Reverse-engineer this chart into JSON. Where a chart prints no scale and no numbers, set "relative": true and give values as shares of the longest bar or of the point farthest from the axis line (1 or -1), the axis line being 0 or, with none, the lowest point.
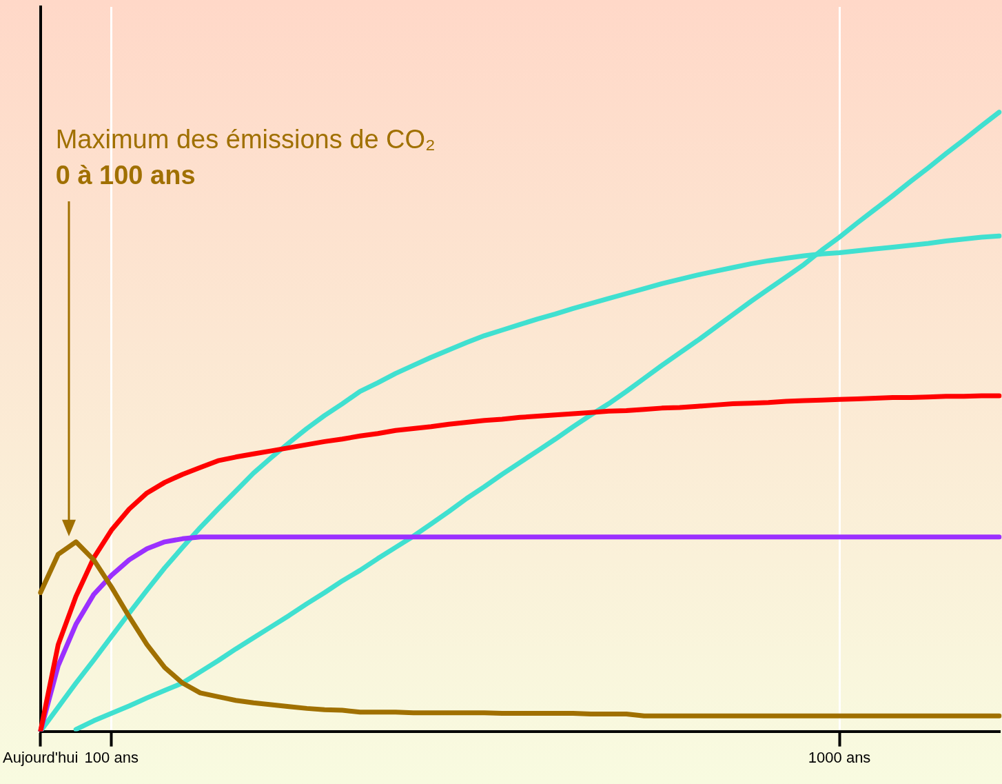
{
  "chart_data": {
    "type": "line",
    "relative": true,
    "grid": "x",
    "legend": false,
    "marker": "none",
    "line_style": "solid",
    "categories": [
      "Aujourd'hui",
      null,
      null,
      null,
      "100 ans",
      null,
      null,
      null,
      null,
      null,
      null,
      null,
      null,
      null,
      null,
      null,
      null,
      null,
      null,
      null,
      null,
      null,
      null,
      null,
      null,
      null,
      null,
      null,
      null,
      null,
      null,
      null,
      null,
      null,
      null,
      null,
      null,
      null,
      null,
      null,
      null,
      null,
      null,
      null,
      null,
      "1000 ans",
      null,
      null,
      null,
      null,
      null,
      null,
      null,
      null,
      null
    ],
    "annotations": [
      "Maximum des émissions de CO₂",
      "0 à 100 ans"
    ],
    "series": [
      {
        "color": "#a07000",
        "values": [
          0.224,
          0.286,
          0.306,
          0.277,
          0.233,
          0.185,
          0.14,
          0.103,
          0.078,
          0.062,
          0.056,
          0.05,
          0.046,
          0.043,
          0.04,
          0.037,
          0.035,
          0.034,
          0.031,
          0.031,
          0.031,
          0.03,
          0.03,
          0.03,
          0.03,
          0.03,
          0.029,
          0.029,
          0.029,
          0.029,
          0.029,
          0.028,
          0.028,
          0.028,
          0.025,
          0.025,
          0.025,
          0.025,
          0.025,
          0.025,
          0.025,
          0.025,
          0.025,
          0.025,
          0.025,
          0.025,
          0.025,
          0.025,
          0.025,
          0.025,
          0.025,
          0.025,
          0.025,
          0.025,
          0.025
        ]
      },
      {
        "color": "#ff0000",
        "values": [
          0,
          0.14,
          0.218,
          0.28,
          0.325,
          0.359,
          0.385,
          0.402,
          0.415,
          0.426,
          0.437,
          0.443,
          0.448,
          0.453,
          0.458,
          0.463,
          0.468,
          0.472,
          0.477,
          0.481,
          0.486,
          0.489,
          0.492,
          0.496,
          0.499,
          0.502,
          0.504,
          0.507,
          0.509,
          0.511,
          0.513,
          0.515,
          0.517,
          0.518,
          0.52,
          0.522,
          0.523,
          0.525,
          0.527,
          0.529,
          0.53,
          0.531,
          0.533,
          0.534,
          0.535,
          0.536,
          0.537,
          0.538,
          0.539,
          0.539,
          0.54,
          0.541,
          0.541,
          0.542,
          0.542
        ]
      },
      {
        "color": "#9b30ff",
        "values": [
          0,
          0.106,
          0.173,
          0.221,
          0.252,
          0.277,
          0.295,
          0.306,
          0.311,
          0.314,
          0.314,
          0.314,
          0.314,
          0.314,
          0.314,
          0.314,
          0.314,
          0.314,
          0.314,
          0.314,
          0.314,
          0.314,
          0.314,
          0.314,
          0.314,
          0.314,
          0.314,
          0.314,
          0.314,
          0.314,
          0.314,
          0.314,
          0.314,
          0.314,
          0.314,
          0.314,
          0.314,
          0.314,
          0.314,
          0.314,
          0.314,
          0.314,
          0.314,
          0.314,
          0.314,
          0.314,
          0.314,
          0.314,
          0.314,
          0.314,
          0.314,
          0.314,
          0.314,
          0.314,
          0.314
        ]
      },
      {
        "color": "#40e0d0",
        "values": [
          0,
          0.039,
          0.078,
          0.115,
          0.153,
          0.191,
          0.228,
          0.264,
          0.297,
          0.329,
          0.359,
          0.388,
          0.417,
          0.442,
          0.466,
          0.489,
          0.51,
          0.529,
          0.549,
          0.563,
          0.578,
          0.591,
          0.604,
          0.616,
          0.628,
          0.639,
          0.648,
          0.657,
          0.666,
          0.674,
          0.683,
          0.691,
          0.699,
          0.707,
          0.715,
          0.723,
          0.73,
          0.737,
          0.743,
          0.749,
          0.755,
          0.76,
          0.764,
          0.768,
          0.771,
          0.773,
          0.776,
          0.779,
          0.782,
          0.785,
          0.788,
          0.792,
          0.795,
          0.798,
          0.8
        ]
      },
      {
        "color": "#40e0d0",
        "values": [
          null,
          null,
          0.003,
          0.017,
          0.029,
          0.041,
          0.054,
          0.066,
          0.078,
          0.096,
          0.114,
          0.133,
          0.151,
          0.169,
          0.187,
          0.206,
          0.224,
          0.243,
          0.26,
          0.279,
          0.297,
          0.315,
          0.335,
          0.355,
          0.376,
          0.395,
          0.415,
          0.434,
          0.453,
          0.472,
          0.492,
          0.511,
          0.529,
          0.549,
          0.57,
          0.591,
          0.611,
          0.631,
          0.652,
          0.673,
          0.694,
          0.714,
          0.734,
          0.754,
          0.777,
          0.798,
          0.821,
          0.843,
          0.865,
          0.888,
          0.91,
          0.933,
          0.955,
          0.978,
          1
        ]
      }
    ]
  }
}
